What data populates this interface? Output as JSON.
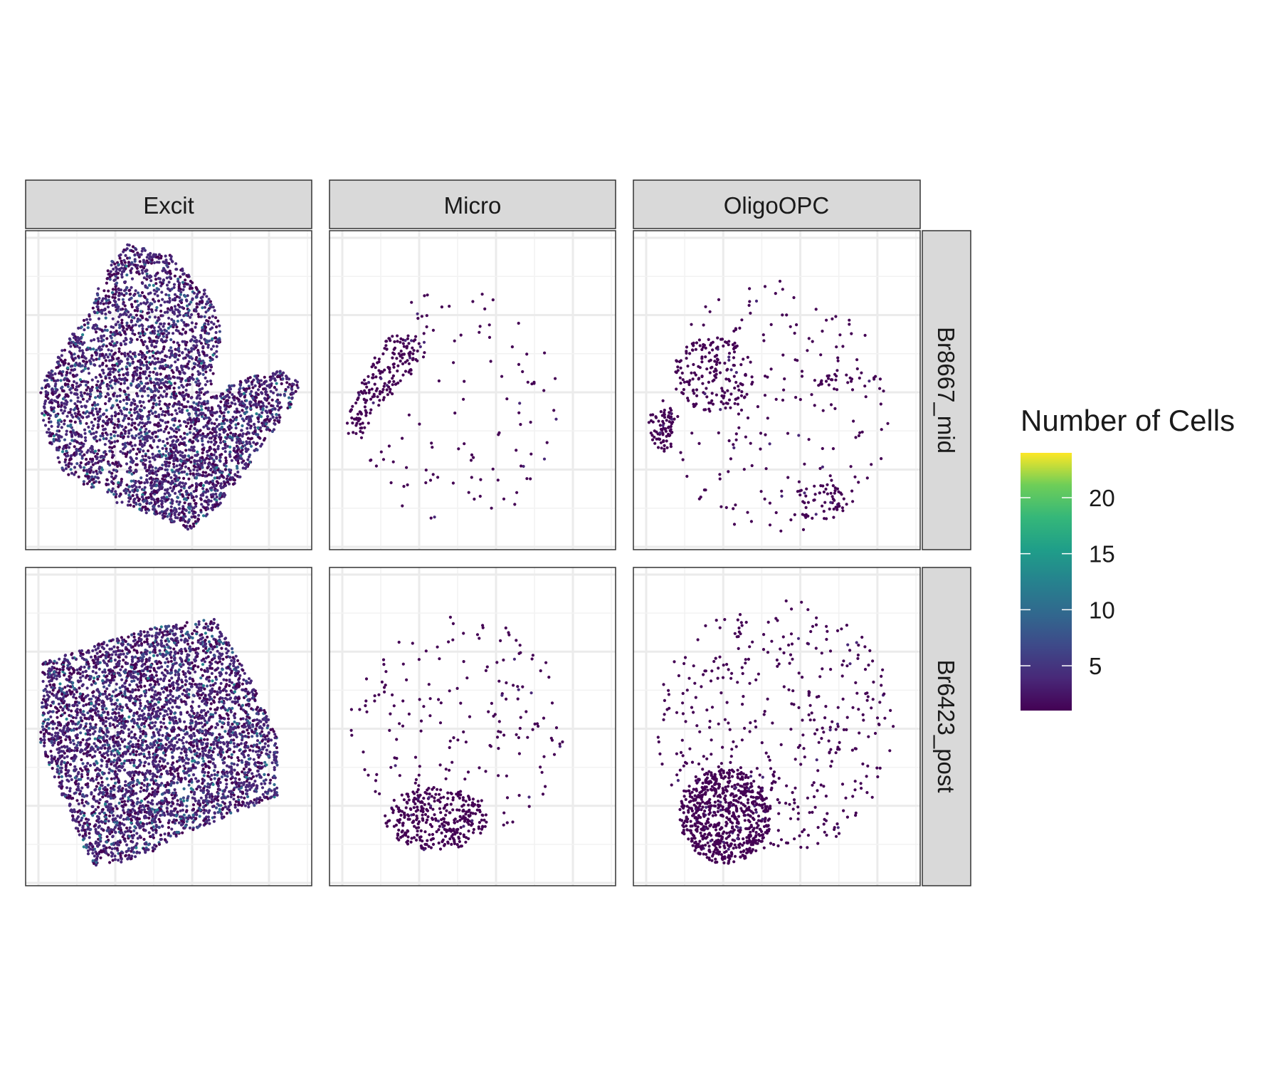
{
  "chart_data": {
    "type": "scatter",
    "description_kind": "faceted spatial hexbin-style cell density plot",
    "column_facets": [
      "Excit",
      "Micro",
      "OligoOPC"
    ],
    "row_facets": [
      "Br8667_mid",
      "Br6423_post"
    ],
    "legend": {
      "title": "Number of Cells",
      "ticks": [
        5,
        10,
        15,
        20
      ],
      "range": [
        1,
        24
      ],
      "colormap": "viridis",
      "placement": "right"
    },
    "grid": true,
    "axis_ticks_shown": false,
    "panels": [
      {
        "column": "Excit",
        "row": "Br8667_mid",
        "density": "high",
        "regions": [
          {
            "shape": "polygon",
            "points": [
              [
                0.36,
                0.04
              ],
              [
                0.5,
                0.07
              ],
              [
                0.63,
                0.19
              ],
              [
                0.69,
                0.3
              ],
              [
                0.64,
                0.52
              ],
              [
                0.53,
                0.65
              ],
              [
                0.45,
                0.89
              ],
              [
                0.34,
                0.87
              ],
              [
                0.28,
                0.82
              ],
              [
                0.29,
                0.67
              ],
              [
                0.25,
                0.82
              ],
              [
                0.12,
                0.75
              ],
              [
                0.06,
                0.61
              ],
              [
                0.05,
                0.5
              ],
              [
                0.1,
                0.4
              ],
              [
                0.15,
                0.34
              ],
              [
                0.22,
                0.26
              ],
              [
                0.29,
                0.1
              ]
            ],
            "count": 2600
          },
          {
            "shape": "polygon",
            "points": [
              [
                0.9,
                0.44
              ],
              [
                0.96,
                0.48
              ],
              [
                0.93,
                0.55
              ],
              [
                0.8,
                0.71
              ],
              [
                0.68,
                0.86
              ],
              [
                0.57,
                0.94
              ],
              [
                0.45,
                0.89
              ],
              [
                0.39,
                0.86
              ],
              [
                0.5,
                0.7
              ],
              [
                0.6,
                0.55
              ],
              [
                0.7,
                0.49
              ],
              [
                0.8,
                0.45
              ]
            ],
            "count": 1300
          }
        ]
      },
      {
        "column": "Micro",
        "row": "Br8667_mid",
        "density": "low",
        "regions": [
          {
            "shape": "polygon",
            "points": [
              [
                0.19,
                0.33
              ],
              [
                0.34,
                0.32
              ],
              [
                0.3,
                0.45
              ],
              [
                0.17,
                0.55
              ],
              [
                0.1,
                0.67
              ],
              [
                0.05,
                0.62
              ],
              [
                0.09,
                0.52
              ]
            ],
            "count": 190
          },
          {
            "shape": "ellipse",
            "cx": 0.45,
            "cy": 0.55,
            "rx": 0.35,
            "ry": 0.38,
            "count": 110
          }
        ]
      },
      {
        "column": "OligoOPC",
        "row": "Br8667_mid",
        "density": "low",
        "regions": [
          {
            "shape": "ellipse",
            "cx": 0.28,
            "cy": 0.45,
            "rx": 0.14,
            "ry": 0.12,
            "count": 170
          },
          {
            "shape": "polygon",
            "points": [
              [
                0.05,
                0.58
              ],
              [
                0.15,
                0.55
              ],
              [
                0.13,
                0.7
              ],
              [
                0.07,
                0.68
              ]
            ],
            "count": 80
          },
          {
            "shape": "ellipse",
            "cx": 0.5,
            "cy": 0.55,
            "rx": 0.4,
            "ry": 0.4,
            "count": 190
          },
          {
            "shape": "ellipse",
            "cx": 0.65,
            "cy": 0.85,
            "rx": 0.1,
            "ry": 0.06,
            "count": 50
          },
          {
            "shape": "ellipse",
            "cx": 0.75,
            "cy": 0.47,
            "rx": 0.12,
            "ry": 0.03,
            "count": 30
          }
        ]
      },
      {
        "column": "Excit",
        "row": "Br6423_post",
        "density": "high",
        "regions": [
          {
            "shape": "polygon",
            "points": [
              [
                0.06,
                0.3
              ],
              [
                0.38,
                0.2
              ],
              [
                0.57,
                0.17
              ],
              [
                0.66,
                0.16
              ],
              [
                0.78,
                0.34
              ],
              [
                0.88,
                0.54
              ],
              [
                0.88,
                0.72
              ],
              [
                0.52,
                0.85
              ],
              [
                0.43,
                0.9
              ],
              [
                0.25,
                0.95
              ],
              [
                0.2,
                0.88
              ],
              [
                0.12,
                0.7
              ],
              [
                0.05,
                0.55
              ]
            ],
            "count": 4200
          }
        ]
      },
      {
        "column": "Micro",
        "row": "Br6423_post",
        "density": "low",
        "regions": [
          {
            "shape": "ellipse",
            "cx": 0.37,
            "cy": 0.79,
            "rx": 0.18,
            "ry": 0.1,
            "count": 330
          },
          {
            "shape": "ellipse",
            "cx": 0.45,
            "cy": 0.5,
            "rx": 0.38,
            "ry": 0.35,
            "count": 190
          }
        ]
      },
      {
        "column": "OligoOPC",
        "row": "Br6423_post",
        "density": "low",
        "regions": [
          {
            "shape": "ellipse",
            "cx": 0.32,
            "cy": 0.78,
            "rx": 0.16,
            "ry": 0.15,
            "count": 700
          },
          {
            "shape": "ellipse",
            "cx": 0.5,
            "cy": 0.5,
            "rx": 0.42,
            "ry": 0.4,
            "count": 420
          }
        ]
      }
    ]
  }
}
